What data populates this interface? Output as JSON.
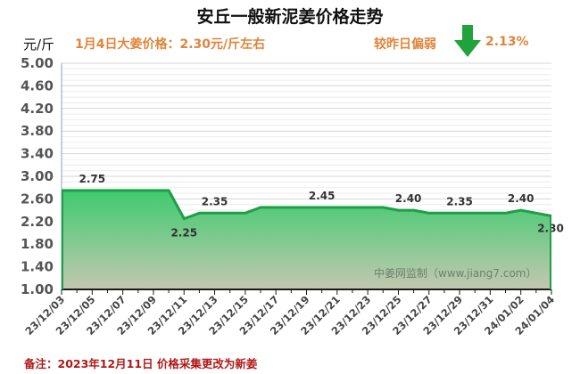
{
  "header": {
    "title": "安丘一般新泥姜价格走势",
    "unit": "元/斤",
    "price_info": "1月4日大姜价格：2.30元/斤左右",
    "compare_label": "较昨日偏弱",
    "compare_pct": "2.13%",
    "trend_icon": "arrow-down-icon",
    "trend_color": "#1fa33a",
    "accent_color": "#e0853a"
  },
  "watermark": "中姜网监制（www.jiang7.com）",
  "footnote": "备注：2023年12月11日 价格采集更改为新姜",
  "chart_data": {
    "type": "area",
    "title": "安丘一般新泥姜价格走势",
    "xlabel": "",
    "ylabel": "元/斤",
    "ylim": [
      1.0,
      5.0
    ],
    "yticks": [
      "1.00",
      "1.40",
      "1.80",
      "2.20",
      "2.60",
      "3.00",
      "3.40",
      "3.80",
      "4.20",
      "4.60",
      "5.00"
    ],
    "grid": true,
    "legend": "none",
    "x_tick_labels": [
      "23/12/03",
      "23/12/05",
      "23/12/07",
      "23/12/09",
      "23/12/11",
      "23/12/13",
      "23/12/15",
      "23/12/17",
      "23/12/19",
      "23/12/21",
      "23/12/23",
      "23/12/25",
      "23/12/27",
      "23/12/29",
      "23/12/31",
      "24/01/02",
      "24/01/04"
    ],
    "x": [
      "23/12/03",
      "23/12/04",
      "23/12/05",
      "23/12/06",
      "23/12/07",
      "23/12/08",
      "23/12/09",
      "23/12/10",
      "23/12/11",
      "23/12/12",
      "23/12/13",
      "23/12/14",
      "23/12/15",
      "23/12/16",
      "23/12/17",
      "23/12/18",
      "23/12/19",
      "23/12/20",
      "23/12/21",
      "23/12/22",
      "23/12/23",
      "23/12/24",
      "23/12/25",
      "23/12/26",
      "23/12/27",
      "23/12/28",
      "23/12/29",
      "23/12/30",
      "23/12/31",
      "24/01/01",
      "24/01/02",
      "24/01/03",
      "24/01/04"
    ],
    "series": [
      {
        "name": "安丘一般新泥姜价格",
        "values": [
          2.75,
          2.75,
          2.75,
          2.75,
          2.75,
          2.75,
          2.75,
          2.75,
          2.25,
          2.35,
          2.35,
          2.35,
          2.35,
          2.45,
          2.45,
          2.45,
          2.45,
          2.45,
          2.45,
          2.45,
          2.45,
          2.45,
          2.4,
          2.4,
          2.35,
          2.35,
          2.35,
          2.35,
          2.35,
          2.35,
          2.4,
          2.35,
          2.3
        ],
        "color": "#1e9e4a",
        "fill_top": "#3ecb6e",
        "fill_bottom": "#c3c8b0"
      }
    ],
    "data_labels": [
      {
        "x": "23/12/05",
        "value": "2.75"
      },
      {
        "x": "23/12/11",
        "value": "2.25"
      },
      {
        "x": "23/12/13",
        "value": "2.35"
      },
      {
        "x": "23/12/20",
        "value": "2.45"
      },
      {
        "x": "23/12/26",
        "value": "2.40"
      },
      {
        "x": "23/12/29",
        "value": "2.35"
      },
      {
        "x": "24/01/02",
        "value": "2.40"
      },
      {
        "x": "24/01/04",
        "value": "2.30"
      }
    ]
  }
}
